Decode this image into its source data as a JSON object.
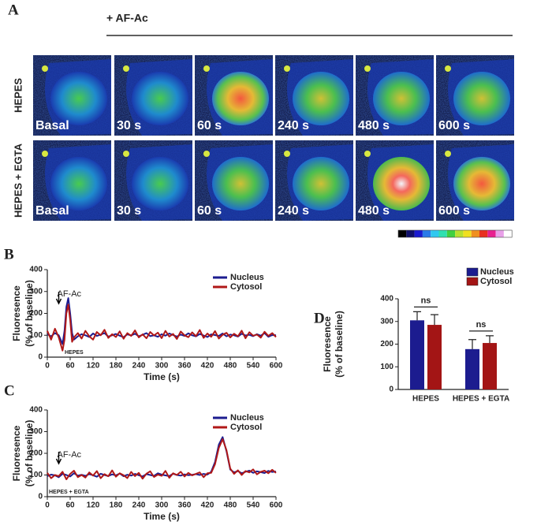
{
  "figure": {
    "label": "A",
    "treatment": "+ AF-Ac",
    "rows": [
      "HEPES",
      "HEPES + EGTA"
    ],
    "times": [
      "Basal",
      "30 s",
      "60 s",
      "240 s",
      "480 s",
      "600 s"
    ]
  },
  "chart_data": [
    {
      "type": "line",
      "panel_label": "B",
      "xlabel": "Time (s)",
      "ylabel": [
        "Fluoresence",
        "(% of baseline)"
      ],
      "annotations": [
        "AF-Ac",
        "HEPES"
      ],
      "x": [
        0,
        10,
        20,
        30,
        40,
        45,
        50,
        55,
        60,
        65,
        70,
        80,
        90,
        100,
        110,
        120,
        130,
        140,
        150,
        160,
        170,
        180,
        190,
        200,
        210,
        220,
        230,
        240,
        250,
        260,
        270,
        280,
        290,
        300,
        310,
        320,
        330,
        340,
        350,
        360,
        370,
        380,
        390,
        400,
        410,
        420,
        430,
        440,
        450,
        460,
        470,
        480,
        490,
        500,
        510,
        520,
        530,
        540,
        550,
        560,
        570,
        580,
        590,
        600
      ],
      "series": [
        {
          "name": "Nucleus",
          "color": "#1c1c8f",
          "values": [
            105,
            95,
            110,
            100,
            60,
            120,
            230,
            270,
            200,
            110,
            80,
            95,
            105,
            100,
            92,
            108,
            97,
            103,
            110,
            94,
            100,
            106,
            98,
            91,
            104,
            99,
            107,
            95,
            102,
            110,
            96,
            100,
            93,
            105,
            98,
            108,
            101,
            94,
            103,
            97,
            109,
            100,
            95,
            106,
            99,
            92,
            104,
            101,
            97,
            108,
            95,
            103,
            100,
            94,
            107,
            99,
            102,
            96,
            105,
            98,
            110,
            93,
            101,
            100
          ]
        },
        {
          "name": "Cytosol",
          "color": "#b01818",
          "values": [
            120,
            80,
            130,
            90,
            30,
            80,
            200,
            240,
            170,
            70,
            90,
            110,
            85,
            120,
            95,
            80,
            115,
            100,
            125,
            88,
            105,
            92,
            118,
            84,
            110,
            97,
            122,
            90,
            104,
            86,
            115,
            99,
            112,
            87,
            120,
            94,
            106,
            83,
            117,
            100,
            91,
            113,
            96,
            124,
            88,
            108,
            93,
            119,
            85,
            102,
            111,
            90,
            107,
            95,
            121,
            86,
            114,
            98,
            103,
            89,
            116,
            97,
            110,
            92
          ]
        }
      ],
      "xlim": [
        0,
        600
      ],
      "ylim": [
        0,
        400
      ],
      "xticks": [
        0,
        60,
        120,
        180,
        240,
        300,
        360,
        420,
        480,
        540,
        600
      ],
      "yticks": [
        0,
        100,
        200,
        300,
        400
      ],
      "legend": "upper right"
    },
    {
      "type": "line",
      "panel_label": "C",
      "xlabel": "Time (s)",
      "ylabel": [
        "Fluoresence",
        "(% of baseline)"
      ],
      "annotations": [
        "AF-Ac",
        "HEPES + EGTA"
      ],
      "x": [
        0,
        10,
        20,
        30,
        40,
        50,
        60,
        70,
        80,
        90,
        100,
        110,
        120,
        130,
        140,
        150,
        160,
        170,
        180,
        190,
        200,
        210,
        220,
        230,
        240,
        250,
        260,
        270,
        280,
        290,
        300,
        310,
        320,
        330,
        340,
        350,
        360,
        370,
        380,
        390,
        400,
        410,
        420,
        430,
        440,
        450,
        460,
        470,
        480,
        490,
        500,
        510,
        520,
        530,
        540,
        550,
        560,
        570,
        580,
        590,
        600
      ],
      "series": [
        {
          "name": "Nucleus",
          "color": "#1c1c8f",
          "values": [
            95,
            102,
            98,
            90,
            105,
            100,
            93,
            108,
            97,
            101,
            96,
            104,
            99,
            92,
            106,
            100,
            95,
            103,
            98,
            107,
            94,
            101,
            97,
            105,
            99,
            93,
            104,
            100,
            96,
            108,
            102,
            98,
            95,
            106,
            100,
            97,
            103,
            99,
            101,
            104,
            100,
            105,
            102,
            115,
            160,
            240,
            275,
            210,
            125,
            112,
            118,
            108,
            115,
            120,
            110,
            117,
            113,
            109,
            119,
            114,
            116
          ]
        },
        {
          "name": "Cytosol",
          "color": "#b01818",
          "values": [
            110,
            85,
            100,
            95,
            115,
            80,
            105,
            120,
            90,
            100,
            88,
            112,
            97,
            118,
            85,
            104,
            94,
            121,
            92,
            108,
            99,
            86,
            114,
            95,
            110,
            83,
            106,
            117,
            91,
            102,
            96,
            119,
            87,
            108,
            100,
            115,
            93,
            110,
            98,
            105,
            112,
            90,
            108,
            110,
            150,
            225,
            265,
            215,
            130,
            105,
            122,
            100,
            118,
            112,
            126,
            103,
            115,
            120,
            108,
            124,
            110
          ]
        }
      ],
      "xlim": [
        0,
        600
      ],
      "ylim": [
        0,
        400
      ],
      "xticks": [
        0,
        60,
        120,
        180,
        240,
        300,
        360,
        420,
        480,
        540,
        600
      ],
      "yticks": [
        0,
        100,
        200,
        300,
        400
      ],
      "legend": "upper right"
    },
    {
      "type": "bar",
      "panel_label": "D",
      "ylabel": [
        "Fluoresence",
        "(% of baseline)"
      ],
      "categories": [
        "HEPES",
        "HEPES + EGTA"
      ],
      "annotations": [
        "ns",
        "ns"
      ],
      "series": [
        {
          "name": "Nucleus",
          "color": "#1c1c8f",
          "values": [
            305,
            178
          ],
          "errors": [
            38,
            42
          ]
        },
        {
          "name": "Cytosol",
          "color": "#a31515",
          "values": [
            285,
            205
          ],
          "errors": [
            45,
            32
          ]
        }
      ],
      "ylim": [
        0,
        400
      ],
      "yticks": [
        0,
        100,
        200,
        300,
        400
      ],
      "legend": "upper right"
    }
  ]
}
